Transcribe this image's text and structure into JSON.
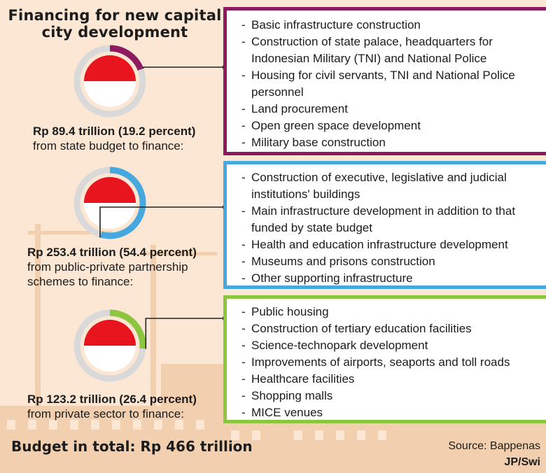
{
  "title": "Financing for new capital city development",
  "colors": {
    "state": "#8e1b5f",
    "ppp": "#47a8df",
    "private": "#8cc63f",
    "ring": "#d9d9d9",
    "flag_red": "#e8141e"
  },
  "chart_data": {
    "type": "pie",
    "total_label": "Budget in total: Rp 466 trillion",
    "series": [
      {
        "name": "state budget",
        "amount": "Rp 89.4 trillion (19.2 percent)",
        "label": "from state budget to finance:",
        "value": 89.4,
        "percent": 19.2,
        "items": [
          "Basic infrastructure construction",
          "Construction of state palace, headquarters for Indonesian Military (TNI) and National Police",
          "Housing for civil servants, TNI and National Police personnel",
          "Land procurement",
          "Open green space development",
          "Military base construction"
        ]
      },
      {
        "name": "public-private partnership",
        "amount": "Rp 253.4 trillion (54.4 percent)",
        "label": "from public-private partnership schemes to finance:",
        "value": 253.4,
        "percent": 54.4,
        "items": [
          "Construction of executive, legislative and judicial institutions' buildings",
          "Main infrastructure development in addition to that funded by state budget",
          "Health and education infrastructure development",
          "Museums and prisons construction",
          "Other supporting infrastructure"
        ]
      },
      {
        "name": "private sector",
        "amount": "Rp 123.2 trillion (26.4 percent)",
        "label": "from private sector to finance:",
        "value": 123.2,
        "percent": 26.4,
        "items": [
          "Public housing",
          "Construction of tertiary education facilities",
          "Science-technopark development",
          "Improvements of airports, seaports and toll roads",
          "Healthcare facilities",
          "Shopping malls",
          "MICE venues"
        ]
      }
    ]
  },
  "footer": {
    "source": "Source: Bappenas",
    "credit": "JP/Swi"
  }
}
